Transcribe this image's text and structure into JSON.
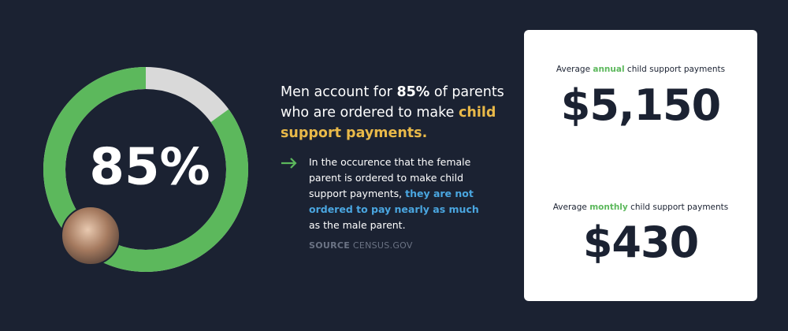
{
  "donut": {
    "value": 85,
    "label": "85%"
  },
  "headline": [
    "Men account for ",
    "85%",
    " of parents who are ordered to make ",
    "child support payments."
  ],
  "note": [
    "In the occurence that the female parent is ordered to make child support payments, ",
    "they are not ordered to pay nearly as much",
    " as the male parent."
  ],
  "source": [
    "SOURCE",
    "CENSUS.GOV"
  ],
  "card": {
    "annual": {
      "caption": [
        "Average ",
        "annual",
        " child support payments"
      ],
      "amount": "$5,150"
    },
    "monthly": {
      "caption": [
        "Average ",
        "monthly",
        " child support payments"
      ],
      "amount": "$430"
    }
  }
}
